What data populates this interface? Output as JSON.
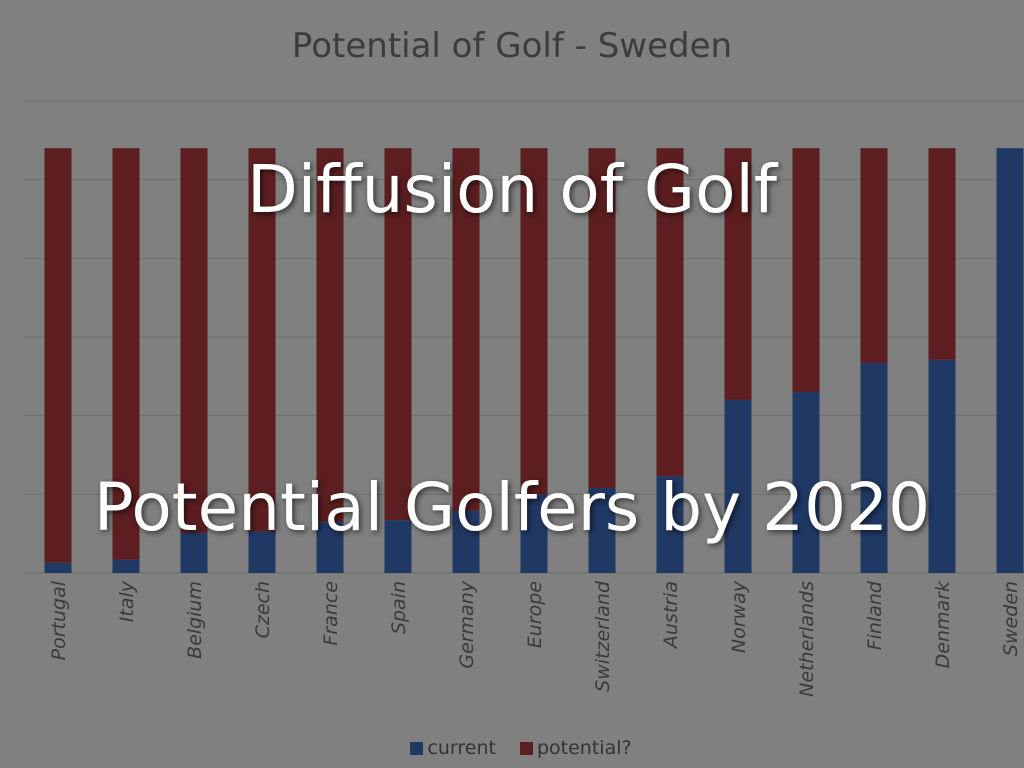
{
  "slide": {
    "heading": "Diffusion of Golf",
    "subheading": "Potential Golfers by 2020"
  },
  "chart_data": {
    "type": "bar",
    "stacked": true,
    "title": "Potential of Golf - Sweden",
    "categories": [
      "Portugal",
      "Italy",
      "Belgium",
      "Czech",
      "France",
      "Spain",
      "Germany",
      "Europe",
      "Switzerland",
      "Austria",
      "Norway",
      "Netherlands",
      "Finland",
      "Denmark",
      "Sweden"
    ],
    "series": [
      {
        "name": "current",
        "color": "#203864",
        "values": [
          0.13,
          0.17,
          0.51,
          0.53,
          0.65,
          0.67,
          0.79,
          1.0,
          1.08,
          1.23,
          2.2,
          2.3,
          2.67,
          2.71,
          5.4
        ]
      },
      {
        "name": "potential?",
        "color": "#5c1e20",
        "values": [
          5.27,
          5.23,
          4.89,
          4.87,
          4.75,
          4.73,
          4.61,
          4.4,
          4.32,
          4.17,
          3.2,
          3.1,
          2.73,
          2.69,
          0
        ]
      }
    ],
    "ylim": [
      0,
      6
    ],
    "grid": true,
    "legend": "bottom"
  }
}
